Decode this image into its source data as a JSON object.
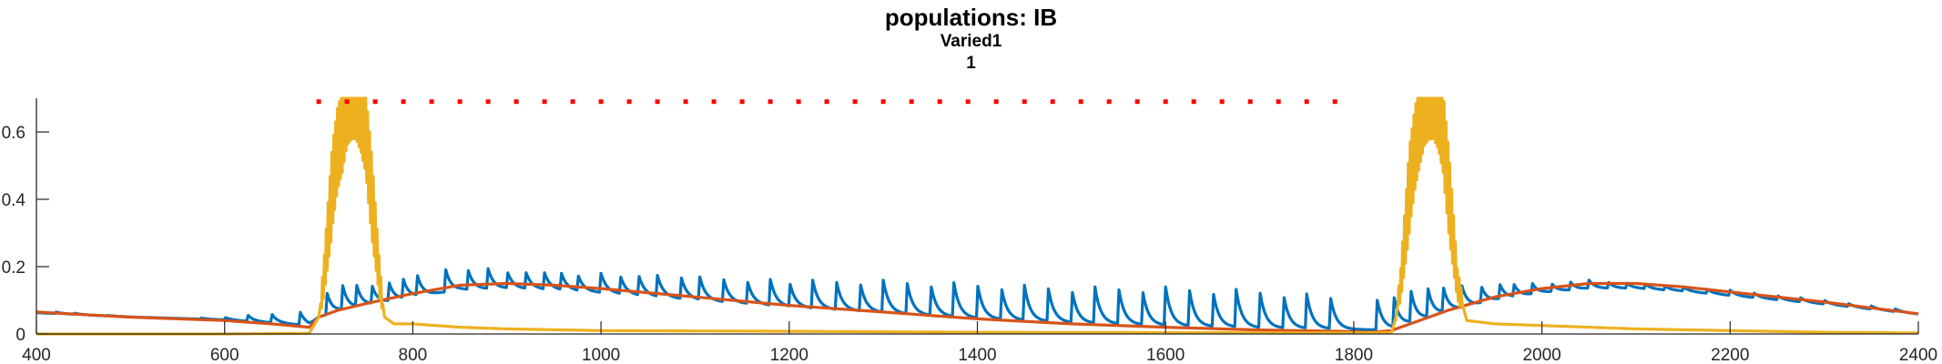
{
  "titles": {
    "main": "populations: IB",
    "sub1": "Varied1",
    "sub2": "1"
  },
  "chart_data": {
    "type": "line",
    "title": "populations: IB",
    "subtitle": [
      "Varied1",
      "1"
    ],
    "xlabel": "",
    "ylabel": "",
    "xlim": [
      400,
      2400
    ],
    "ylim": [
      0,
      0.7
    ],
    "x_ticks": [
      400,
      600,
      800,
      1000,
      1200,
      1400,
      1600,
      1800,
      2000,
      2200,
      2400
    ],
    "y_ticks": [
      0,
      0.2,
      0.4,
      0.6
    ],
    "y_tick_labels": [
      "0",
      "0.2",
      "0.4",
      "0.6"
    ],
    "grid": false,
    "legend": "none",
    "colors": {
      "blue": "#0072BD",
      "orange": "#D95319",
      "yellow": "#EDB120",
      "dots": "#FF0000",
      "axis": "#262626"
    },
    "markers": {
      "color": "red",
      "y": 0.69,
      "x": [
        700,
        730,
        760,
        790,
        820,
        850,
        880,
        910,
        940,
        970,
        1000,
        1030,
        1060,
        1090,
        1120,
        1150,
        1180,
        1210,
        1240,
        1270,
        1300,
        1330,
        1360,
        1390,
        1420,
        1450,
        1480,
        1510,
        1540,
        1570,
        1600,
        1630,
        1660,
        1690,
        1720,
        1750,
        1780
      ]
    },
    "series": [
      {
        "color": "#0072BD",
        "description": "spiking trace",
        "envelope_x": [
          400,
          450,
          500,
          550,
          600,
          650,
          690,
          700,
          720,
          740,
          760,
          800,
          850,
          900,
          950,
          1000,
          1100,
          1200,
          1300,
          1400,
          1500,
          1600,
          1700,
          1790,
          1800,
          1830,
          1850,
          1880,
          1900,
          1950,
          2000,
          2050,
          2100,
          2200,
          2300,
          2390,
          2400
        ],
        "envelope_peak": [
          0.07,
          0.06,
          0.05,
          0.045,
          0.05,
          0.06,
          0.07,
          0.12,
          0.15,
          0.15,
          0.14,
          0.17,
          0.2,
          0.19,
          0.18,
          0.18,
          0.17,
          0.16,
          0.16,
          0.15,
          0.14,
          0.14,
          0.13,
          0.11,
          0.1,
          0.1,
          0.14,
          0.15,
          0.14,
          0.15,
          0.15,
          0.16,
          0.15,
          0.13,
          0.1,
          0.07,
          0.06
        ],
        "spike_x": [
          420,
          440,
          475,
          550,
          575,
          600,
          625,
          650,
          680,
          708,
          725,
          740,
          757,
          775,
          790,
          805,
          835,
          858,
          880,
          900,
          920,
          940,
          958,
          975,
          1000,
          1020,
          1040,
          1060,
          1085,
          1105,
          1130,
          1155,
          1180,
          1200,
          1225,
          1250,
          1275,
          1300,
          1325,
          1350,
          1375,
          1400,
          1425,
          1450,
          1475,
          1500,
          1525,
          1550,
          1575,
          1600,
          1625,
          1650,
          1675,
          1700,
          1725,
          1750,
          1775,
          1825,
          1842,
          1860,
          1878,
          1895,
          1915,
          1935,
          1955,
          1970,
          1990,
          2010,
          2030,
          2050,
          2070,
          2090,
          2110,
          2130,
          2150,
          2175,
          2200,
          2225,
          2250,
          2275,
          2300,
          2325,
          2350,
          2375
        ]
      },
      {
        "color": "#D95319",
        "description": "slow trace",
        "x": [
          400,
          500,
          600,
          650,
          690,
          700,
          720,
          750,
          800,
          850,
          900,
          950,
          1000,
          1100,
          1200,
          1300,
          1400,
          1500,
          1600,
          1700,
          1780,
          1820,
          1840,
          1860,
          1880,
          1900,
          1950,
          2000,
          2050,
          2100,
          2150,
          2200,
          2300,
          2400
        ],
        "y": [
          0.065,
          0.05,
          0.04,
          0.03,
          0.02,
          0.05,
          0.07,
          0.09,
          0.12,
          0.145,
          0.15,
          0.145,
          0.135,
          0.11,
          0.085,
          0.065,
          0.045,
          0.03,
          0.02,
          0.012,
          0.008,
          0.005,
          0.01,
          0.03,
          0.05,
          0.07,
          0.11,
          0.135,
          0.15,
          0.15,
          0.14,
          0.125,
          0.095,
          0.06
        ]
      },
      {
        "color": "#EDB120",
        "description": "bursting trace",
        "x": [
          400,
          600,
          690,
          700,
          705,
          710,
          715,
          720,
          725,
          730,
          735,
          740,
          745,
          750,
          755,
          760,
          765,
          770,
          780,
          800,
          850,
          900,
          1000,
          1200,
          1400,
          1600,
          1800,
          1840,
          1845,
          1850,
          1855,
          1860,
          1865,
          1870,
          1875,
          1880,
          1885,
          1890,
          1895,
          1900,
          1905,
          1910,
          1920,
          1950,
          2000,
          2100,
          2200,
          2300,
          2400
        ],
        "y": [
          0.0,
          0.0,
          0.002,
          0.05,
          0.15,
          0.3,
          0.45,
          0.55,
          0.6,
          0.68,
          0.7,
          0.7,
          0.66,
          0.6,
          0.45,
          0.3,
          0.15,
          0.05,
          0.03,
          0.03,
          0.02,
          0.015,
          0.01,
          0.008,
          0.005,
          0.004,
          0.003,
          0.004,
          0.05,
          0.15,
          0.3,
          0.45,
          0.55,
          0.62,
          0.68,
          0.7,
          0.7,
          0.67,
          0.6,
          0.45,
          0.3,
          0.15,
          0.04,
          0.03,
          0.025,
          0.015,
          0.01,
          0.005,
          0.003
        ]
      }
    ]
  }
}
